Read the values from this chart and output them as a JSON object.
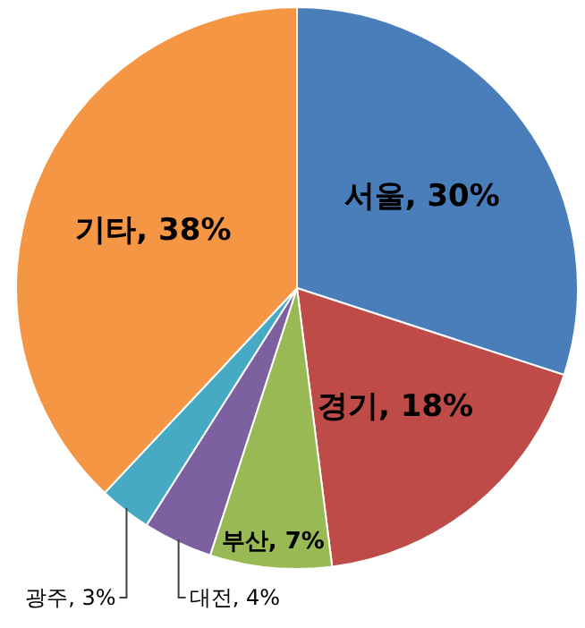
{
  "chart_data": {
    "type": "pie",
    "categories": [
      "서울",
      "경기",
      "부산",
      "대전",
      "광주",
      "기타"
    ],
    "values": [
      30,
      18,
      7,
      4,
      3,
      38
    ],
    "value_labels": [
      ", 30%",
      ", 18%",
      ", 7%",
      ", 4%",
      ", 3%",
      ", 38%"
    ],
    "colors": [
      "#4a7ebb",
      "#be4b48",
      "#98b954",
      "#7d60a0",
      "#46aac5",
      "#f59645"
    ]
  }
}
